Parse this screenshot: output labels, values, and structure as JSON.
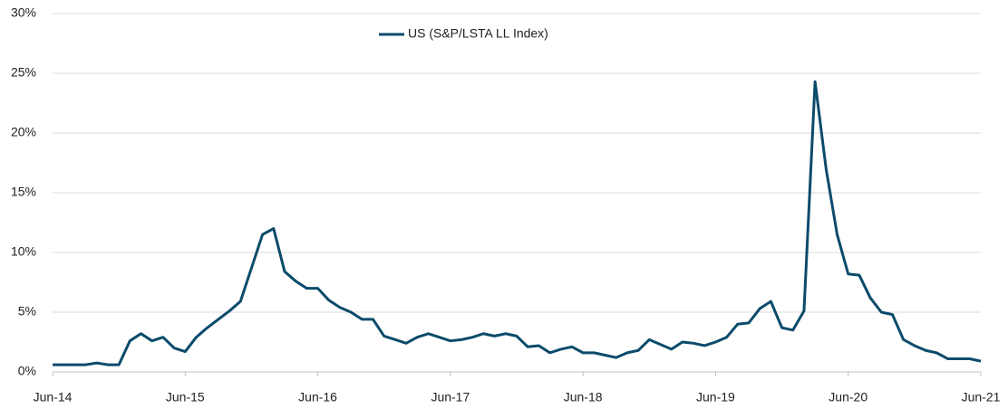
{
  "chart_data": {
    "type": "line",
    "categories": [
      "Jun-14",
      null,
      null,
      null,
      null,
      null,
      null,
      null,
      null,
      null,
      null,
      null,
      "Jun-15",
      null,
      null,
      null,
      null,
      null,
      null,
      null,
      null,
      null,
      null,
      null,
      "Jun-16",
      null,
      null,
      null,
      null,
      null,
      null,
      null,
      null,
      null,
      null,
      null,
      "Jun-17",
      null,
      null,
      null,
      null,
      null,
      null,
      null,
      null,
      null,
      null,
      null,
      "Jun-18",
      null,
      null,
      null,
      null,
      null,
      null,
      null,
      null,
      null,
      null,
      null,
      "Jun-19",
      null,
      null,
      null,
      null,
      null,
      null,
      null,
      null,
      null,
      null,
      null,
      "Jun-20",
      null,
      null,
      null,
      null,
      null,
      null,
      null,
      null,
      null,
      null,
      null,
      "Jun-21"
    ],
    "series": [
      {
        "name": "US (S&P/LSTA LL Index)",
        "color": "#0b4b6b",
        "values": [
          0.6,
          0.6,
          0.6,
          0.6,
          0.75,
          0.6,
          0.6,
          2.6,
          3.2,
          2.6,
          2.9,
          2.0,
          1.7,
          2.9,
          3.7,
          4.4,
          5.1,
          5.9,
          8.7,
          11.5,
          12.0,
          8.4,
          7.6,
          7.0,
          7.0,
          6.0,
          5.4,
          5.0,
          4.4,
          4.4,
          3.0,
          2.7,
          2.4,
          2.9,
          3.2,
          2.9,
          2.6,
          2.7,
          2.9,
          3.2,
          3.0,
          3.2,
          3.0,
          2.1,
          2.2,
          1.6,
          1.9,
          2.1,
          1.6,
          1.6,
          1.4,
          1.2,
          1.6,
          1.8,
          2.7,
          2.3,
          1.9,
          2.5,
          2.4,
          2.2,
          2.5,
          2.9,
          4.0,
          4.1,
          5.3,
          5.9,
          3.7,
          3.5,
          5.1,
          24.3,
          17.0,
          11.5,
          8.2,
          8.1,
          6.2,
          5.0,
          4.8,
          2.7,
          2.2,
          1.8,
          1.6,
          1.1,
          1.1,
          1.1,
          0.9
        ]
      }
    ],
    "ylim": [
      0,
      30
    ],
    "yticks": [
      {
        "value": 0,
        "label": "0%"
      },
      {
        "value": 5,
        "label": "5%"
      },
      {
        "value": 10,
        "label": "10%"
      },
      {
        "value": 15,
        "label": "15%"
      },
      {
        "value": 20,
        "label": "20%"
      },
      {
        "value": 25,
        "label": "25%"
      },
      {
        "value": 30,
        "label": "30%"
      }
    ],
    "grid": true,
    "legend": "top"
  }
}
